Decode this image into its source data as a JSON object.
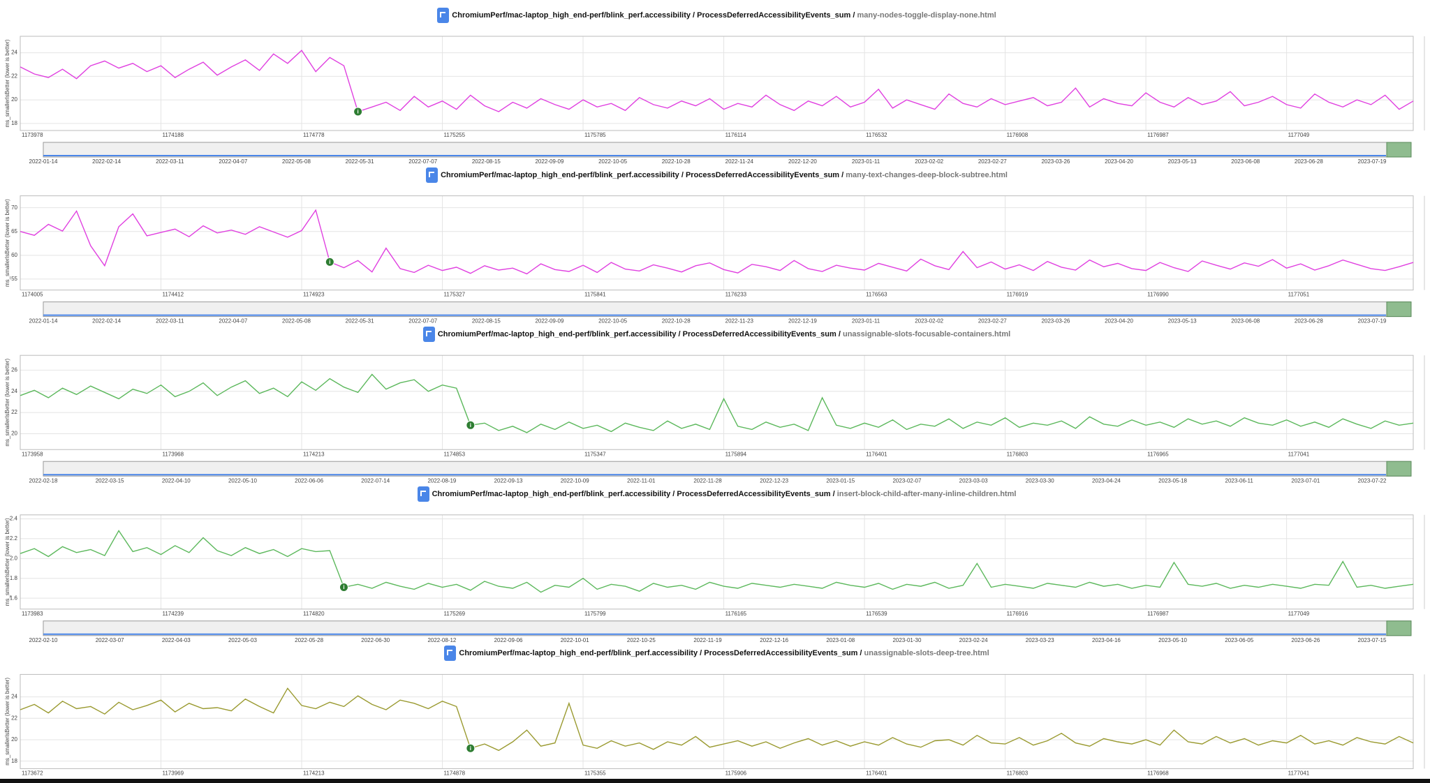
{
  "chart_data": [
    {
      "type": "line",
      "title": "ChromiumPerf/mac-laptop_high_end-perf/blink_perf.accessibility / ProcessDeferredAccessibilityEvents_sum /",
      "subtitle": "many-nodes-toggle-display-none.html",
      "y_label": "ms_smallerIsBetter (lower is better)",
      "color": "#e040e0",
      "grid": true,
      "ylim": [
        17.4,
        25.4
      ],
      "yticks": [
        18,
        20,
        22,
        24
      ],
      "categories": [
        "1173978",
        null,
        null,
        null,
        null,
        null,
        null,
        null,
        null,
        null,
        "1174188",
        null,
        null,
        null,
        null,
        null,
        null,
        null,
        null,
        null,
        "1174778",
        null,
        null,
        null,
        null,
        null,
        null,
        null,
        null,
        null,
        "1175255",
        null,
        null,
        null,
        null,
        null,
        null,
        null,
        null,
        null,
        "1175785",
        null,
        null,
        null,
        null,
        null,
        null,
        null,
        null,
        null,
        "1176114",
        null,
        null,
        null,
        null,
        null,
        null,
        null,
        null,
        null,
        "1176532",
        null,
        null,
        null,
        null,
        null,
        null,
        null,
        null,
        null,
        "1176908",
        null,
        null,
        null,
        null,
        null,
        null,
        null,
        null,
        null,
        "1176987",
        null,
        null,
        null,
        null,
        null,
        null,
        null,
        null,
        null,
        "1177049",
        null,
        null,
        null,
        null,
        null,
        null,
        null,
        null,
        null
      ],
      "values": [
        22.8,
        22.2,
        21.9,
        22.6,
        21.8,
        22.9,
        23.3,
        22.7,
        23.1,
        22.4,
        22.9,
        21.9,
        22.6,
        23.2,
        22.1,
        22.8,
        23.4,
        22.5,
        23.9,
        23.1,
        24.2,
        22.4,
        23.6,
        22.9,
        19.0,
        19.4,
        19.8,
        19.1,
        20.3,
        19.4,
        19.9,
        19.2,
        20.4,
        19.5,
        19.0,
        19.8,
        19.3,
        20.1,
        19.6,
        19.2,
        20.0,
        19.4,
        19.7,
        19.1,
        20.2,
        19.6,
        19.3,
        19.9,
        19.5,
        20.1,
        19.2,
        19.7,
        19.4,
        20.4,
        19.6,
        19.1,
        19.9,
        19.5,
        20.3,
        19.4,
        19.8,
        20.9,
        19.3,
        20.0,
        19.6,
        19.2,
        20.5,
        19.7,
        19.4,
        20.1,
        19.6,
        19.9,
        20.2,
        19.5,
        19.8,
        21.0,
        19.4,
        20.1,
        19.7,
        19.5,
        20.6,
        19.8,
        19.4,
        20.2,
        19.6,
        19.9,
        20.7,
        19.5,
        19.8,
        20.3,
        19.6,
        19.3,
        20.5,
        19.8,
        19.4,
        20.0,
        19.6,
        20.4,
        19.2,
        19.9
      ],
      "alerts": [
        {
          "x": 24,
          "label": "i"
        }
      ],
      "overview_dates": [
        "2022-01-14",
        "2022-02-14",
        "2022-03-11",
        "2022-04-07",
        "2022-05-08",
        "2022-05-31",
        "2022-07-07",
        "2022-08-15",
        "2022-09-09",
        "2022-10-05",
        "2022-10-28",
        "2022-11-24",
        "2022-12-20",
        "2023-01-11",
        "2023-02-02",
        "2023-02-27",
        "2023-03-26",
        "2023-04-20",
        "2023-05-13",
        "2023-06-08",
        "2023-06-28",
        "2023-07-19"
      ]
    },
    {
      "type": "line",
      "title": "ChromiumPerf/mac-laptop_high_end-perf/blink_perf.accessibility / ProcessDeferredAccessibilityEvents_sum /",
      "subtitle": "many-text-changes-deep-block-subtree.html",
      "y_label": "ms_smallerIsBetter (lower is better)",
      "color": "#e040e0",
      "grid": true,
      "ylim": [
        52.7,
        72.5
      ],
      "yticks": [
        55,
        60,
        65,
        70
      ],
      "categories": [
        "1174005",
        null,
        null,
        null,
        null,
        null,
        null,
        null,
        null,
        null,
        "1174412",
        null,
        null,
        null,
        null,
        null,
        null,
        null,
        null,
        null,
        "1174923",
        null,
        null,
        null,
        null,
        null,
        null,
        null,
        null,
        null,
        "1175327",
        null,
        null,
        null,
        null,
        null,
        null,
        null,
        null,
        null,
        "1175841",
        null,
        null,
        null,
        null,
        null,
        null,
        null,
        null,
        null,
        "1176233",
        null,
        null,
        null,
        null,
        null,
        null,
        null,
        null,
        null,
        "1176563",
        null,
        null,
        null,
        null,
        null,
        null,
        null,
        null,
        null,
        "1176919",
        null,
        null,
        null,
        null,
        null,
        null,
        null,
        null,
        null,
        "1176990",
        null,
        null,
        null,
        null,
        null,
        null,
        null,
        null,
        null,
        "1177051",
        null,
        null,
        null,
        null,
        null,
        null,
        null,
        null,
        null
      ],
      "values": [
        65.0,
        64.2,
        66.5,
        65.1,
        69.3,
        62.0,
        57.8,
        66.0,
        68.7,
        64.1,
        64.8,
        65.5,
        63.9,
        66.2,
        64.7,
        65.3,
        64.4,
        66.0,
        64.9,
        63.8,
        65.2,
        69.5,
        58.6,
        57.4,
        58.9,
        56.5,
        61.5,
        57.2,
        56.4,
        57.9,
        56.8,
        57.5,
        56.2,
        57.8,
        56.9,
        57.3,
        56.1,
        58.2,
        57.0,
        56.6,
        57.9,
        56.4,
        58.5,
        57.1,
        56.7,
        58.0,
        57.3,
        56.5,
        57.8,
        58.4,
        57.0,
        56.3,
        58.1,
        57.6,
        56.8,
        58.9,
        57.2,
        56.6,
        57.9,
        57.3,
        56.9,
        58.3,
        57.5,
        56.7,
        59.2,
        57.8,
        57.0,
        60.8,
        57.4,
        58.6,
        57.1,
        58.0,
        56.8,
        58.7,
        57.5,
        56.9,
        59.0,
        57.6,
        58.3,
        57.2,
        56.8,
        58.5,
        57.4,
        56.6,
        58.8,
        57.9,
        57.1,
        58.4,
        57.7,
        59.1,
        57.3,
        58.2,
        56.9,
        57.8,
        59.0,
        58.1,
        57.2,
        56.8,
        57.6,
        58.5
      ],
      "alerts": [
        {
          "x": 22,
          "label": "i"
        }
      ],
      "overview_dates": [
        "2022-01-14",
        "2022-02-14",
        "2022-03-11",
        "2022-04-07",
        "2022-05-08",
        "2022-05-31",
        "2022-07-07",
        "2022-08-15",
        "2022-09-09",
        "2022-10-05",
        "2022-10-28",
        "2022-11-23",
        "2022-12-19",
        "2023-01-11",
        "2023-02-02",
        "2023-02-27",
        "2023-03-26",
        "2023-04-20",
        "2023-05-13",
        "2023-06-08",
        "2023-06-28",
        "2023-07-19"
      ]
    },
    {
      "type": "line",
      "title": "ChromiumPerf/mac-laptop_high_end-perf/blink_perf.accessibility / ProcessDeferredAccessibilityEvents_sum /",
      "subtitle": "unassignable-slots-focusable-containers.html",
      "y_label": "ms_smallerIsBetter (lower is better)",
      "color": "#5cb85c",
      "grid": true,
      "ylim": [
        18.5,
        27.4
      ],
      "yticks": [
        20,
        22,
        24,
        26
      ],
      "categories": [
        "1173958",
        null,
        null,
        null,
        null,
        null,
        null,
        null,
        null,
        null,
        "1173968",
        null,
        null,
        null,
        null,
        null,
        null,
        null,
        null,
        null,
        "1174213",
        null,
        null,
        null,
        null,
        null,
        null,
        null,
        null,
        null,
        "1174853",
        null,
        null,
        null,
        null,
        null,
        null,
        null,
        null,
        null,
        "1175347",
        null,
        null,
        null,
        null,
        null,
        null,
        null,
        null,
        null,
        "1175894",
        null,
        null,
        null,
        null,
        null,
        null,
        null,
        null,
        null,
        "1176401",
        null,
        null,
        null,
        null,
        null,
        null,
        null,
        null,
        null,
        "1176803",
        null,
        null,
        null,
        null,
        null,
        null,
        null,
        null,
        null,
        "1176965",
        null,
        null,
        null,
        null,
        null,
        null,
        null,
        null,
        null,
        "1177041",
        null,
        null,
        null,
        null,
        null,
        null,
        null,
        null,
        null
      ],
      "values": [
        23.6,
        24.1,
        23.4,
        24.3,
        23.7,
        24.5,
        23.9,
        23.3,
        24.2,
        23.8,
        24.6,
        23.5,
        24.0,
        24.8,
        23.6,
        24.4,
        25.0,
        23.8,
        24.3,
        23.5,
        24.9,
        24.1,
        25.2,
        24.4,
        23.9,
        25.6,
        24.2,
        24.8,
        25.1,
        24.0,
        24.6,
        24.3,
        20.8,
        21.0,
        20.3,
        20.7,
        20.1,
        20.9,
        20.4,
        21.1,
        20.5,
        20.8,
        20.2,
        21.0,
        20.6,
        20.3,
        21.2,
        20.5,
        20.9,
        20.4,
        23.3,
        20.7,
        20.4,
        21.1,
        20.6,
        20.9,
        20.3,
        23.4,
        20.8,
        20.5,
        21.0,
        20.6,
        21.3,
        20.4,
        20.9,
        20.7,
        21.4,
        20.5,
        21.1,
        20.8,
        21.5,
        20.6,
        21.0,
        20.8,
        21.2,
        20.5,
        21.6,
        20.9,
        20.7,
        21.3,
        20.8,
        21.1,
        20.6,
        21.4,
        20.9,
        21.2,
        20.7,
        21.5,
        21.0,
        20.8,
        21.3,
        20.7,
        21.1,
        20.6,
        21.4,
        20.9,
        20.5,
        21.2,
        20.8,
        21.0
      ],
      "alerts": [
        {
          "x": 32,
          "label": "i"
        }
      ],
      "overview_dates": [
        "2022-02-18",
        "2022-03-15",
        "2022-04-10",
        "2022-05-10",
        "2022-06-06",
        "2022-07-14",
        "2022-08-19",
        "2022-09-13",
        "2022-10-09",
        "2022-11-01",
        "2022-11-28",
        "2022-12-23",
        "2023-01-15",
        "2023-02-07",
        "2023-03-03",
        "2023-03-30",
        "2023-04-24",
        "2023-05-18",
        "2023-06-11",
        "2023-07-01",
        "2023-07-22"
      ]
    },
    {
      "type": "line",
      "title": "ChromiumPerf/mac-laptop_high_end-perf/blink_perf.accessibility / ProcessDeferredAccessibilityEvents_sum /",
      "subtitle": "insert-block-child-after-many-inline-children.html",
      "y_label": "ms_smallerIsBetter (lower is better)",
      "color": "#5cb85c",
      "grid": true,
      "ylim": [
        1.49,
        2.44
      ],
      "yticks": [
        1.6,
        1.8,
        {
          "value": 2,
          "label": "2.0"
        },
        2.2,
        2.4
      ],
      "categories": [
        "1173983",
        null,
        null,
        null,
        null,
        null,
        null,
        null,
        null,
        null,
        "1174239",
        null,
        null,
        null,
        null,
        null,
        null,
        null,
        null,
        null,
        "1174820",
        null,
        null,
        null,
        null,
        null,
        null,
        null,
        null,
        null,
        "1175269",
        null,
        null,
        null,
        null,
        null,
        null,
        null,
        null,
        null,
        "1175799",
        null,
        null,
        null,
        null,
        null,
        null,
        null,
        null,
        null,
        "1176165",
        null,
        null,
        null,
        null,
        null,
        null,
        null,
        null,
        null,
        "1176539",
        null,
        null,
        null,
        null,
        null,
        null,
        null,
        null,
        null,
        "1176916",
        null,
        null,
        null,
        null,
        null,
        null,
        null,
        null,
        null,
        "1176987",
        null,
        null,
        null,
        null,
        null,
        null,
        null,
        null,
        null,
        "1177049",
        null,
        null,
        null,
        null,
        null,
        null,
        null,
        null,
        null
      ],
      "values": [
        2.05,
        2.1,
        2.02,
        2.12,
        2.06,
        2.09,
        2.03,
        2.28,
        2.07,
        2.11,
        2.04,
        2.13,
        2.06,
        2.21,
        2.08,
        2.03,
        2.11,
        2.05,
        2.09,
        2.02,
        2.1,
        2.07,
        2.08,
        1.71,
        1.74,
        1.7,
        1.76,
        1.72,
        1.69,
        1.75,
        1.71,
        1.74,
        1.68,
        1.77,
        1.72,
        1.7,
        1.76,
        1.66,
        1.73,
        1.71,
        1.8,
        1.69,
        1.74,
        1.72,
        1.67,
        1.75,
        1.71,
        1.73,
        1.69,
        1.76,
        1.72,
        1.7,
        1.75,
        1.73,
        1.71,
        1.74,
        1.72,
        1.7,
        1.76,
        1.73,
        1.71,
        1.75,
        1.69,
        1.74,
        1.72,
        1.76,
        1.7,
        1.73,
        1.95,
        1.71,
        1.74,
        1.72,
        1.7,
        1.75,
        1.73,
        1.71,
        1.76,
        1.72,
        1.74,
        1.7,
        1.73,
        1.71,
        1.96,
        1.74,
        1.72,
        1.75,
        1.7,
        1.73,
        1.71,
        1.74,
        1.72,
        1.7,
        1.74,
        1.73,
        1.97,
        1.71,
        1.73,
        1.7,
        1.72,
        1.74
      ],
      "alerts": [
        {
          "x": 23,
          "label": "i"
        }
      ],
      "overview_dates": [
        "2022-02-10",
        "2022-03-07",
        "2022-04-03",
        "2022-05-03",
        "2022-05-28",
        "2022-06-30",
        "2022-08-12",
        "2022-09-06",
        "2022-10-01",
        "2022-10-25",
        "2022-11-19",
        "2022-12-16",
        "2023-01-08",
        "2023-01-30",
        "2023-02-24",
        "2023-03-23",
        "2023-04-16",
        "2023-05-10",
        "2023-06-05",
        "2023-06-26",
        "2023-07-15"
      ]
    },
    {
      "type": "line",
      "title": "ChromiumPerf/mac-laptop_high_end-perf/blink_perf.accessibility / ProcessDeferredAccessibilityEvents_sum /",
      "subtitle": "unassignable-slots-deep-tree.html",
      "y_label": "ms_smallerIsBetter (lower is better)",
      "color": "#9a9a30",
      "grid": true,
      "ylim": [
        17.3,
        26.1
      ],
      "yticks": [
        18,
        20,
        22,
        24
      ],
      "categories": [
        "1173672",
        null,
        null,
        null,
        null,
        null,
        null,
        null,
        null,
        null,
        "1173969",
        null,
        null,
        null,
        null,
        null,
        null,
        null,
        null,
        null,
        "1174213",
        null,
        null,
        null,
        null,
        null,
        null,
        null,
        null,
        null,
        "1174878",
        null,
        null,
        null,
        null,
        null,
        null,
        null,
        null,
        null,
        "1175355",
        null,
        null,
        null,
        null,
        null,
        null,
        null,
        null,
        null,
        "1175906",
        null,
        null,
        null,
        null,
        null,
        null,
        null,
        null,
        null,
        "1176401",
        null,
        null,
        null,
        null,
        null,
        null,
        null,
        null,
        null,
        "1176803",
        null,
        null,
        null,
        null,
        null,
        null,
        null,
        null,
        null,
        "1176968",
        null,
        null,
        null,
        null,
        null,
        null,
        null,
        null,
        null,
        "1177041",
        null,
        null,
        null,
        null,
        null,
        null,
        null,
        null,
        null
      ],
      "values": [
        22.8,
        23.3,
        22.5,
        23.6,
        22.9,
        23.1,
        22.4,
        23.5,
        22.8,
        23.2,
        23.7,
        22.6,
        23.4,
        22.9,
        23.0,
        22.7,
        23.8,
        23.1,
        22.5,
        24.8,
        23.2,
        22.9,
        23.5,
        23.1,
        24.1,
        23.3,
        22.8,
        23.7,
        23.4,
        22.9,
        23.6,
        23.1,
        19.2,
        19.6,
        19.0,
        19.8,
        20.9,
        19.4,
        19.7,
        23.4,
        19.5,
        19.2,
        19.9,
        19.4,
        19.7,
        19.1,
        19.8,
        19.5,
        20.3,
        19.3,
        19.6,
        19.9,
        19.4,
        19.8,
        19.2,
        19.7,
        20.1,
        19.5,
        19.9,
        19.4,
        19.8,
        19.5,
        20.2,
        19.6,
        19.3,
        19.9,
        20.0,
        19.5,
        20.4,
        19.7,
        19.6,
        20.2,
        19.5,
        19.9,
        20.6,
        19.7,
        19.4,
        20.1,
        19.8,
        19.6,
        20.0,
        19.5,
        20.9,
        19.8,
        19.6,
        20.3,
        19.7,
        20.1,
        19.5,
        19.9,
        19.7,
        20.4,
        19.6,
        19.9,
        19.5,
        20.2,
        19.8,
        19.6,
        20.3,
        19.7
      ],
      "alerts": [
        {
          "x": 32,
          "label": "i"
        }
      ]
    }
  ]
}
